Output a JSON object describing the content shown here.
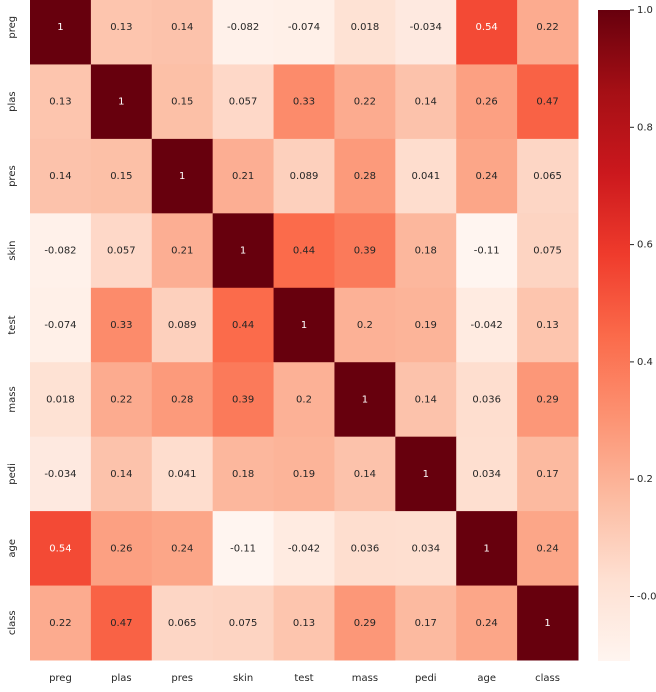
{
  "chart_data": {
    "type": "heatmap",
    "x_categories": [
      "preg",
      "plas",
      "pres",
      "skin",
      "test",
      "mass",
      "pedi",
      "age",
      "class"
    ],
    "y_categories": [
      "preg",
      "plas",
      "pres",
      "skin",
      "test",
      "mass",
      "pedi",
      "age",
      "class"
    ],
    "values": [
      [
        1,
        0.13,
        0.14,
        -0.082,
        -0.074,
        0.018,
        -0.034,
        0.54,
        0.22
      ],
      [
        0.13,
        1,
        0.15,
        0.057,
        0.33,
        0.22,
        0.14,
        0.26,
        0.47
      ],
      [
        0.14,
        0.15,
        1,
        0.21,
        0.089,
        0.28,
        0.041,
        0.24,
        0.065
      ],
      [
        -0.082,
        0.057,
        0.21,
        1,
        0.44,
        0.39,
        0.18,
        -0.11,
        0.075
      ],
      [
        -0.074,
        0.33,
        0.089,
        0.44,
        1,
        0.2,
        0.19,
        -0.042,
        0.13
      ],
      [
        0.018,
        0.22,
        0.28,
        0.39,
        0.2,
        1,
        0.14,
        0.036,
        0.29
      ],
      [
        -0.034,
        0.14,
        0.041,
        0.18,
        0.19,
        0.14,
        1,
        0.034,
        0.17
      ],
      [
        0.54,
        0.26,
        0.24,
        -0.11,
        -0.042,
        0.036,
        0.034,
        1,
        0.24
      ],
      [
        0.22,
        0.47,
        0.065,
        0.075,
        0.13,
        0.29,
        0.17,
        0.24,
        1
      ]
    ],
    "colormap": [
      "#fff5f0",
      "#fee0d2",
      "#fcbba1",
      "#fc9272",
      "#fb6a4a",
      "#ef3b2c",
      "#cb181d",
      "#a50f15",
      "#67000d"
    ],
    "colorbar_lim": [
      -0.11,
      1
    ],
    "colorbar_ticks": [
      {
        "value": 0,
        "label": "-0.0"
      },
      0.2,
      0.4,
      0.6,
      0.8,
      {
        "value": 1,
        "label": "1.0"
      }
    ]
  }
}
